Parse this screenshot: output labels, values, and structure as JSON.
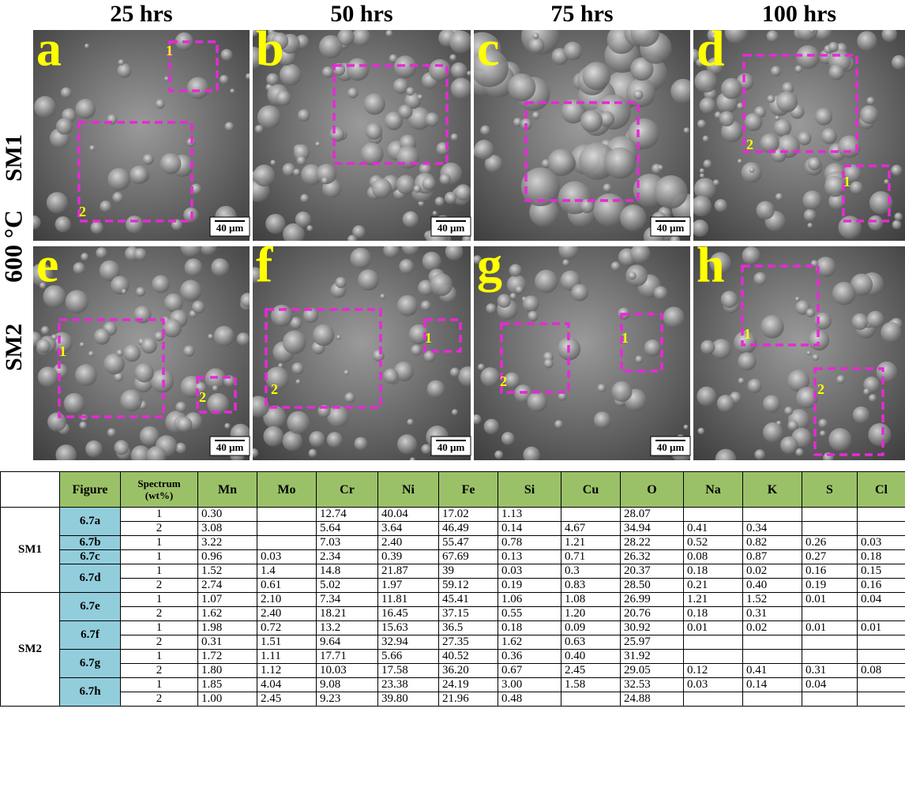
{
  "figure": {
    "columns": [
      "25 hrs",
      "50 hrs",
      "75 hrs",
      "100 hrs"
    ],
    "temperature": "600 °C",
    "rows": [
      "SM1",
      "SM2"
    ],
    "panels": [
      {
        "letter": "a",
        "scale": "40 µm",
        "regions": [
          "1",
          "2"
        ]
      },
      {
        "letter": "b",
        "scale": "40 µm"
      },
      {
        "letter": "c",
        "scale": "40 µm"
      },
      {
        "letter": "d",
        "regions": [
          "2",
          "1"
        ]
      },
      {
        "letter": "e",
        "scale": "40 µm",
        "regions": [
          "1",
          "2"
        ]
      },
      {
        "letter": "f",
        "scale": "40 µm",
        "regions": [
          "2",
          "1"
        ]
      },
      {
        "letter": "g",
        "scale": "40 µm",
        "regions": [
          "2",
          "1"
        ]
      },
      {
        "letter": "h",
        "regions": [
          "1",
          "2"
        ]
      }
    ]
  },
  "table": {
    "header": [
      "Figure",
      "Spectrum (wt%)",
      "Mn",
      "Mo",
      "Cr",
      "Ni",
      "Fe",
      "Si",
      "Cu",
      "O",
      "Na",
      "K",
      "S",
      "Cl"
    ],
    "groups": [
      {
        "name": "SM1",
        "figures": [
          {
            "name": "6.7a",
            "rows": [
              {
                "spectrum": "1",
                "values": [
                  "0.30",
                  null,
                  "12.74",
                  "40.04",
                  "17.02",
                  "1.13",
                  null,
                  "28.07",
                  null,
                  null,
                  null,
                  null
                ]
              },
              {
                "spectrum": "2",
                "values": [
                  "3.08",
                  null,
                  "5.64",
                  "3.64",
                  "46.49",
                  "0.14",
                  "4.67",
                  "34.94",
                  "0.41",
                  "0.34",
                  null,
                  null
                ]
              }
            ]
          },
          {
            "name": "6.7b",
            "rows": [
              {
                "spectrum": "1",
                "values": [
                  "3.22",
                  null,
                  "7.03",
                  "2.40",
                  "55.47",
                  "0.78",
                  "1.21",
                  "28.22",
                  "0.52",
                  "0.82",
                  "0.26",
                  "0.03"
                ]
              }
            ]
          },
          {
            "name": "6.7c",
            "rows": [
              {
                "spectrum": "1",
                "values": [
                  "0.96",
                  "0.03",
                  "2.34",
                  "0.39",
                  "67.69",
                  "0.13",
                  "0.71",
                  "26.32",
                  "0.08",
                  "0.87",
                  "0.27",
                  "0.18"
                ]
              }
            ]
          },
          {
            "name": "6.7d",
            "rows": [
              {
                "spectrum": "1",
                "values": [
                  "1.52",
                  "1.4",
                  "14.8",
                  "21.87",
                  "39",
                  "0.03",
                  "0.3",
                  "20.37",
                  "0.18",
                  "0.02",
                  "0.16",
                  "0.15"
                ]
              },
              {
                "spectrum": "2",
                "values": [
                  "2.74",
                  "0.61",
                  "5.02",
                  "1.97",
                  "59.12",
                  "0.19",
                  "0.83",
                  "28.50",
                  "0.21",
                  "0.40",
                  "0.19",
                  "0.16"
                ]
              }
            ]
          }
        ]
      },
      {
        "name": "SM2",
        "figures": [
          {
            "name": "6.7e",
            "rows": [
              {
                "spectrum": "1",
                "values": [
                  "1.07",
                  "2.10",
                  "7.34",
                  "11.81",
                  "45.41",
                  "1.06",
                  "1.08",
                  "26.99",
                  "1.21",
                  "1.52",
                  "0.01",
                  "0.04"
                ]
              },
              {
                "spectrum": "2",
                "values": [
                  "1.62",
                  "2.40",
                  "18.21",
                  "16.45",
                  "37.15",
                  "0.55",
                  "1.20",
                  "20.76",
                  "0.18",
                  "0.31",
                  null,
                  null
                ]
              }
            ]
          },
          {
            "name": "6.7f",
            "rows": [
              {
                "spectrum": "1",
                "values": [
                  "1.98",
                  "0.72",
                  "13.2",
                  "15.63",
                  "36.5",
                  "0.18",
                  "0.09",
                  "30.92",
                  "0.01",
                  "0.02",
                  "0.01",
                  "0.01"
                ]
              },
              {
                "spectrum": "2",
                "values": [
                  "0.31",
                  "1.51",
                  "9.64",
                  "32.94",
                  "27.35",
                  "1.62",
                  "0.63",
                  "25.97",
                  null,
                  null,
                  null,
                  null
                ]
              }
            ]
          },
          {
            "name": "6.7g",
            "rows": [
              {
                "spectrum": "1",
                "values": [
                  "1.72",
                  "1.11",
                  "17.71",
                  "5.66",
                  "40.52",
                  "0.36",
                  "0.40",
                  "31.92",
                  null,
                  null,
                  null,
                  null
                ]
              },
              {
                "spectrum": "2",
                "values": [
                  "1.80",
                  "1.12",
                  "10.03",
                  "17.58",
                  "36.20",
                  "0.67",
                  "2.45",
                  "29.05",
                  "0.12",
                  "0.41",
                  "0.31",
                  "0.08"
                ]
              }
            ]
          },
          {
            "name": "6.7h",
            "rows": [
              {
                "spectrum": "1",
                "values": [
                  "1.85",
                  "4.04",
                  "9.08",
                  "23.38",
                  "24.19",
                  "3.00",
                  "1.58",
                  "32.53",
                  "0.03",
                  "0.14",
                  "0.04",
                  null
                ]
              },
              {
                "spectrum": "2",
                "values": [
                  "1.00",
                  "2.45",
                  "9.23",
                  "39.80",
                  "21.96",
                  "0.48",
                  null,
                  "24.88",
                  null,
                  null,
                  null,
                  null
                ]
              }
            ]
          }
        ]
      }
    ]
  }
}
